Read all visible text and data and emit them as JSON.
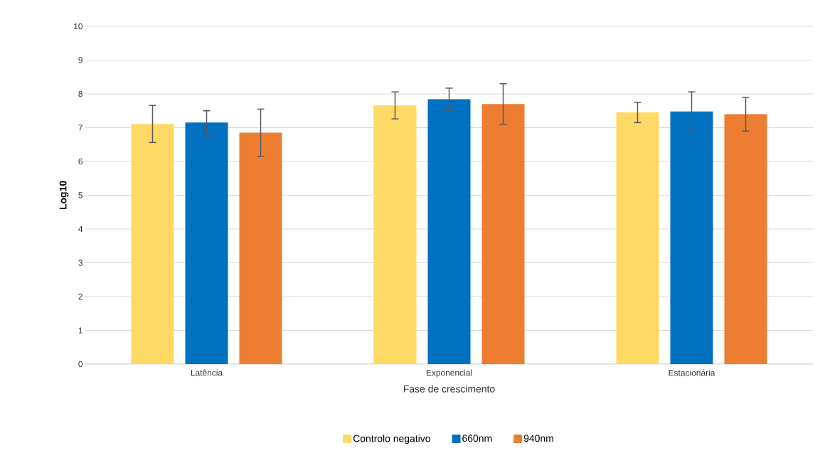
{
  "chart_data": {
    "type": "bar",
    "xlabel": "Fase de crescimento",
    "ylabel": "Log10",
    "categories": [
      "Latência",
      "Exponencial",
      "Estacionária"
    ],
    "series": [
      {
        "name": "Controlo negativo",
        "color": "#ffd966",
        "values": [
          7.11,
          7.66,
          7.45
        ],
        "errors": [
          0.55,
          0.4,
          0.3
        ]
      },
      {
        "name": "660nm",
        "color": "#0070c0",
        "values": [
          7.15,
          7.84,
          7.48
        ],
        "errors": [
          0.35,
          0.33,
          0.58
        ]
      },
      {
        "name": "940nm",
        "color": "#ed7d31",
        "values": [
          6.85,
          7.7,
          7.4
        ],
        "errors": [
          0.7,
          0.6,
          0.5
        ]
      }
    ],
    "ylim": [
      0,
      10
    ],
    "yticks": [
      0,
      1,
      2,
      3,
      4,
      5,
      6,
      7,
      8,
      9,
      10
    ],
    "grid": "y",
    "legend": "bottom"
  }
}
